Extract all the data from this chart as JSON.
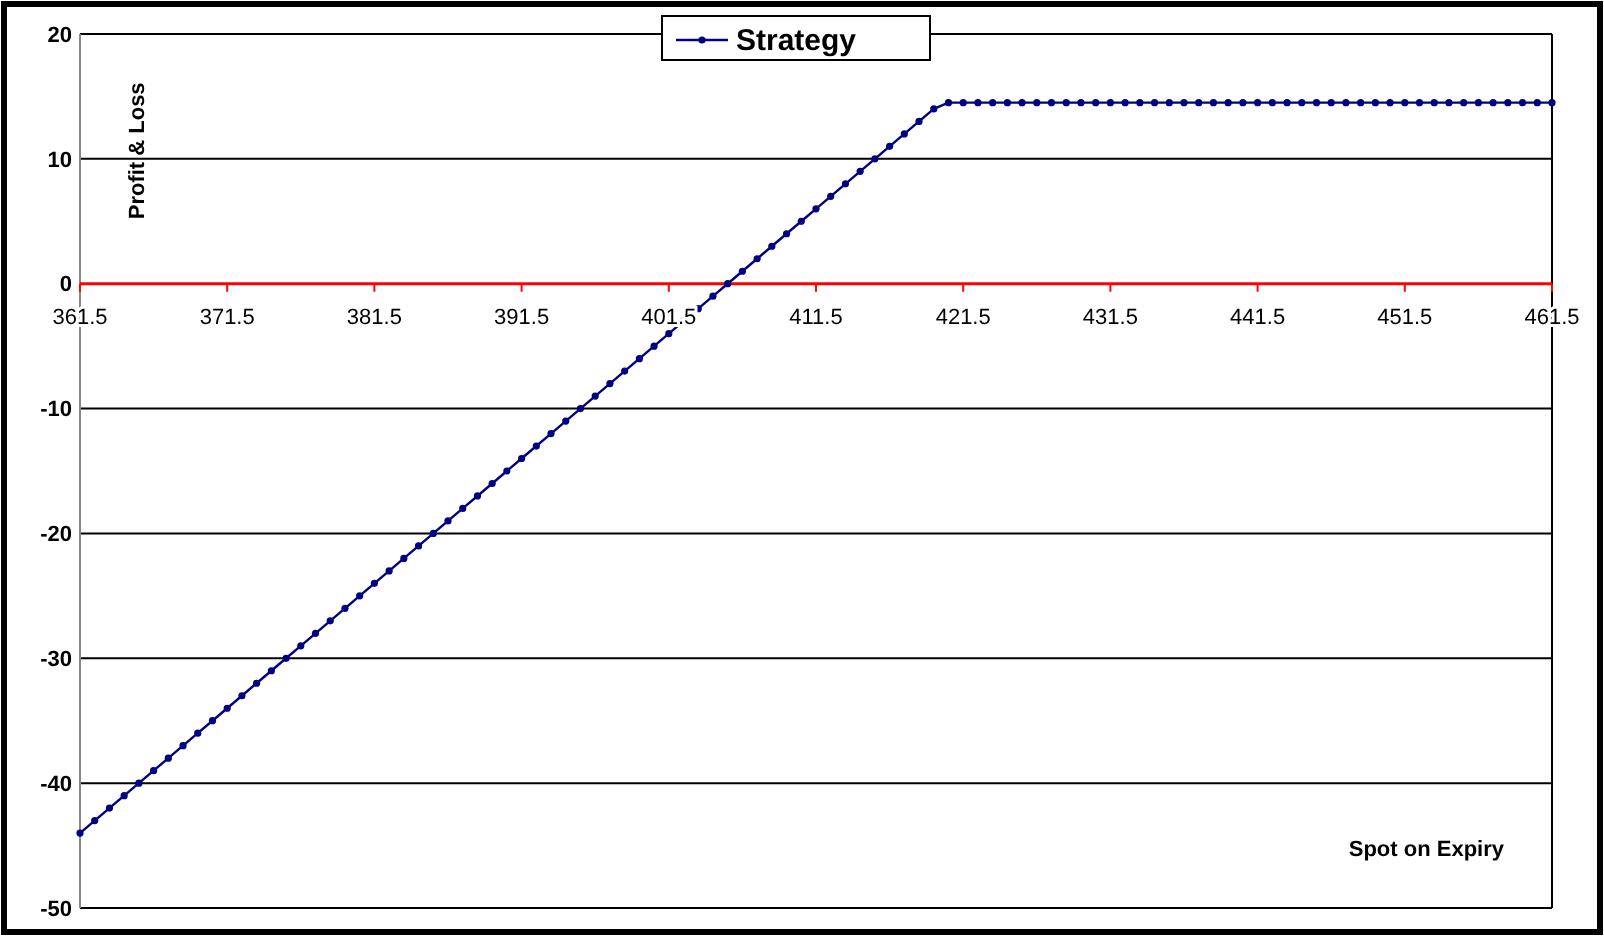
{
  "chart_data": {
    "type": "line",
    "xlabel": "Spot on Expiry",
    "ylabel": "Profit & Loss",
    "x": [
      361.5,
      362.5,
      363.5,
      364.5,
      365.5,
      366.5,
      367.5,
      368.5,
      369.5,
      370.5,
      371.5,
      372.5,
      373.5,
      374.5,
      375.5,
      376.5,
      377.5,
      378.5,
      379.5,
      380.5,
      381.5,
      382.5,
      383.5,
      384.5,
      385.5,
      386.5,
      387.5,
      388.5,
      389.5,
      390.5,
      391.5,
      392.5,
      393.5,
      394.5,
      395.5,
      396.5,
      397.5,
      398.5,
      399.5,
      400.5,
      401.5,
      402.5,
      403.5,
      404.5,
      405.5,
      406.5,
      407.5,
      408.5,
      409.5,
      410.5,
      411.5,
      412.5,
      413.5,
      414.5,
      415.5,
      416.5,
      417.5,
      418.5,
      419.5,
      420.5,
      421.5,
      422.5,
      423.5,
      424.5,
      425.5,
      426.5,
      427.5,
      428.5,
      429.5,
      430.5,
      431.5,
      432.5,
      433.5,
      434.5,
      435.5,
      436.5,
      437.5,
      438.5,
      439.5,
      440.5,
      441.5,
      442.5,
      443.5,
      444.5,
      445.5,
      446.5,
      447.5,
      448.5,
      449.5,
      450.5,
      451.5,
      452.5,
      453.5,
      454.5,
      455.5,
      456.5,
      457.5,
      458.5,
      459.5,
      460.5,
      461.5
    ],
    "series": [
      {
        "name": "Strategy",
        "color": "#000080",
        "values": [
          -44,
          -43,
          -42,
          -41,
          -40,
          -39,
          -38,
          -37,
          -36,
          -35,
          -34,
          -33,
          -32,
          -31,
          -30,
          -29,
          -28,
          -27,
          -26,
          -25,
          -24,
          -23,
          -22,
          -21,
          -20,
          -19,
          -18,
          -17,
          -16,
          -15,
          -14,
          -13,
          -12,
          -11,
          -10,
          -9,
          -8,
          -7,
          -6,
          -5,
          -4,
          -3,
          -2,
          -1,
          0,
          1,
          2,
          3,
          4,
          5,
          6,
          7,
          8,
          9,
          10,
          11,
          12,
          13,
          14,
          14.5,
          14.5,
          14.5,
          14.5,
          14.5,
          14.5,
          14.5,
          14.5,
          14.5,
          14.5,
          14.5,
          14.5,
          14.5,
          14.5,
          14.5,
          14.5,
          14.5,
          14.5,
          14.5,
          14.5,
          14.5,
          14.5,
          14.5,
          14.5,
          14.5,
          14.5,
          14.5,
          14.5,
          14.5,
          14.5,
          14.5,
          14.5,
          14.5,
          14.5,
          14.5,
          14.5,
          14.5,
          14.5,
          14.5,
          14.5,
          14.5,
          14.5
        ]
      }
    ],
    "xlim": [
      361.5,
      461.5
    ],
    "xticks": [
      361.5,
      371.5,
      381.5,
      391.5,
      401.5,
      411.5,
      421.5,
      431.5,
      441.5,
      451.5,
      461.5
    ],
    "ylim": [
      -50,
      20
    ],
    "yticks": [
      -50,
      -40,
      -30,
      -20,
      -10,
      0,
      10,
      20
    ],
    "grid": "y",
    "legend": "top",
    "marker": "circle",
    "line_style": "solid"
  }
}
